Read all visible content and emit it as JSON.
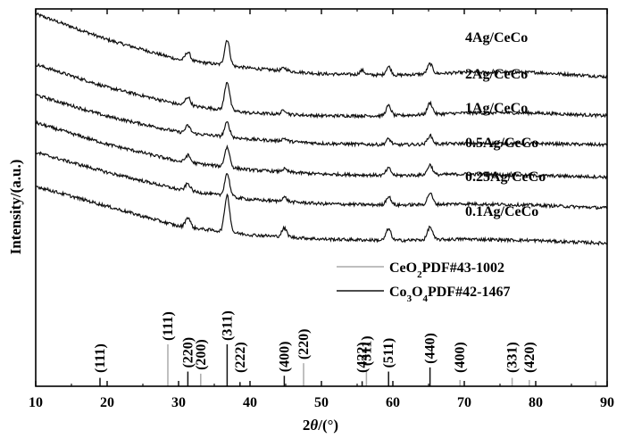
{
  "chart_data": {
    "type": "line",
    "title": "",
    "xlabel_parts": [
      "2",
      "θ",
      "/(°)"
    ],
    "ylabel": "Intensity/(a.u.)",
    "xlim": [
      10,
      90
    ],
    "x_ticks": [
      10,
      20,
      30,
      40,
      50,
      60,
      70,
      80,
      90
    ],
    "y_ticks_shown": false,
    "grid": false,
    "legend": {
      "placement": "middle-right",
      "items": [
        {
          "name_parts": [
            "CeO",
            "2",
            "PDF#43-1002"
          ],
          "color": "#aaaaaa"
        },
        {
          "name_parts": [
            "Co",
            "3",
            "O",
            "4",
            "PDF#42-1467"
          ],
          "color": "#111111"
        }
      ]
    },
    "series": [
      {
        "name": "4Ag/CeCo",
        "baseline": [
          [
            10,
            0.38
          ],
          [
            20,
            0.2
          ],
          [
            30,
            0.06
          ],
          [
            40,
            0.0
          ],
          [
            50,
            -0.04
          ],
          [
            60,
            -0.05
          ],
          [
            70,
            -0.03
          ],
          [
            80,
            -0.03
          ],
          [
            90,
            -0.06
          ]
        ],
        "peaks": [
          [
            31.3,
            0.06
          ],
          [
            36.8,
            0.18
          ],
          [
            44.8,
            0.02
          ],
          [
            55.7,
            0.03
          ],
          [
            59.4,
            0.06
          ],
          [
            65.2,
            0.07
          ]
        ]
      },
      {
        "name": "2Ag/CeCo",
        "baseline": [
          [
            10,
            0.32
          ],
          [
            20,
            0.16
          ],
          [
            30,
            0.04
          ],
          [
            40,
            -0.02
          ],
          [
            50,
            -0.04
          ],
          [
            60,
            -0.04
          ],
          [
            70,
            -0.02
          ],
          [
            80,
            -0.02
          ],
          [
            90,
            -0.04
          ]
        ],
        "peaks": [
          [
            31.3,
            0.06
          ],
          [
            36.8,
            0.2
          ],
          [
            44.8,
            0.03
          ],
          [
            59.4,
            0.07
          ],
          [
            65.2,
            0.08
          ]
        ]
      },
      {
        "name": "1Ag/CeCo",
        "baseline": [
          [
            10,
            0.3
          ],
          [
            20,
            0.15
          ],
          [
            30,
            0.04
          ],
          [
            40,
            -0.01
          ],
          [
            50,
            -0.04
          ],
          [
            60,
            -0.05
          ],
          [
            70,
            -0.04
          ],
          [
            80,
            -0.04
          ],
          [
            90,
            -0.05
          ]
        ],
        "peaks": [
          [
            31.3,
            0.05
          ],
          [
            36.8,
            0.1
          ],
          [
            44.8,
            0.02
          ],
          [
            59.4,
            0.04
          ],
          [
            65.2,
            0.06
          ]
        ]
      },
      {
        "name": "0.5Ag/CeCo",
        "baseline": [
          [
            10,
            0.33
          ],
          [
            20,
            0.18
          ],
          [
            30,
            0.06
          ],
          [
            40,
            0.0
          ],
          [
            50,
            -0.03
          ],
          [
            60,
            -0.04
          ],
          [
            70,
            -0.03
          ],
          [
            80,
            -0.04
          ],
          [
            90,
            -0.05
          ]
        ],
        "peaks": [
          [
            31.3,
            0.05
          ],
          [
            36.8,
            0.14
          ],
          [
            44.8,
            0.02
          ],
          [
            59.4,
            0.05
          ],
          [
            65.2,
            0.07
          ]
        ]
      },
      {
        "name": "0.25Ag/CeCo",
        "baseline": [
          [
            10,
            0.36
          ],
          [
            20,
            0.22
          ],
          [
            30,
            0.1
          ],
          [
            40,
            0.03
          ],
          [
            50,
            0.0
          ],
          [
            60,
            -0.01
          ],
          [
            70,
            0.0
          ],
          [
            80,
            -0.01
          ],
          [
            90,
            -0.03
          ]
        ],
        "peaks": [
          [
            31.3,
            0.05
          ],
          [
            36.8,
            0.16
          ],
          [
            44.8,
            0.03
          ],
          [
            59.4,
            0.06
          ],
          [
            65.2,
            0.08
          ]
        ]
      },
      {
        "name": "0.1Ag/CeCo",
        "baseline": [
          [
            10,
            0.36
          ],
          [
            20,
            0.22
          ],
          [
            30,
            0.08
          ],
          [
            40,
            0.02
          ],
          [
            50,
            -0.01
          ],
          [
            60,
            -0.02
          ],
          [
            70,
            -0.01
          ],
          [
            80,
            -0.02
          ],
          [
            90,
            -0.04
          ]
        ],
        "peaks": [
          [
            31.3,
            0.07
          ],
          [
            36.8,
            0.26
          ],
          [
            44.8,
            0.06
          ],
          [
            59.4,
            0.08
          ],
          [
            65.2,
            0.09
          ]
        ]
      }
    ],
    "reference_lines": [
      {
        "phase": "CeO2",
        "x": 28.5,
        "rel": 1.0,
        "label": "(111)"
      },
      {
        "phase": "CeO2",
        "x": 33.1,
        "rel": 0.3,
        "label": "(200)"
      },
      {
        "phase": "CeO2",
        "x": 47.5,
        "rel": 0.55,
        "label": "(220)"
      },
      {
        "phase": "CeO2",
        "x": 56.3,
        "rel": 0.4,
        "label": "(311)"
      },
      {
        "phase": "CeO2",
        "x": 69.4,
        "rel": 0.15,
        "label": "(400)"
      },
      {
        "phase": "CeO2",
        "x": 76.7,
        "rel": 0.2,
        "label": "(331)"
      },
      {
        "phase": "CeO2",
        "x": 79.1,
        "rel": 0.15,
        "label": "(420)"
      },
      {
        "phase": "CeO2",
        "x": 88.4,
        "rel": 0.12,
        "label": ""
      },
      {
        "phase": "Co3O4",
        "x": 19.0,
        "rel": 0.2,
        "label": "(111)"
      },
      {
        "phase": "Co3O4",
        "x": 31.3,
        "rel": 0.35,
        "label": "(220)"
      },
      {
        "phase": "Co3O4",
        "x": 36.8,
        "rel": 1.0,
        "label": "(311)"
      },
      {
        "phase": "Co3O4",
        "x": 38.6,
        "rel": 0.1,
        "label": "(222)"
      },
      {
        "phase": "Co3O4",
        "x": 44.8,
        "rel": 0.25,
        "label": "(400)"
      },
      {
        "phase": "Co3O4",
        "x": 55.7,
        "rel": 0.12,
        "label": "(422)"
      },
      {
        "phase": "Co3O4",
        "x": 59.4,
        "rel": 0.35,
        "label": "(511)"
      },
      {
        "phase": "Co3O4",
        "x": 65.2,
        "rel": 0.45,
        "label": "(440)"
      }
    ]
  }
}
